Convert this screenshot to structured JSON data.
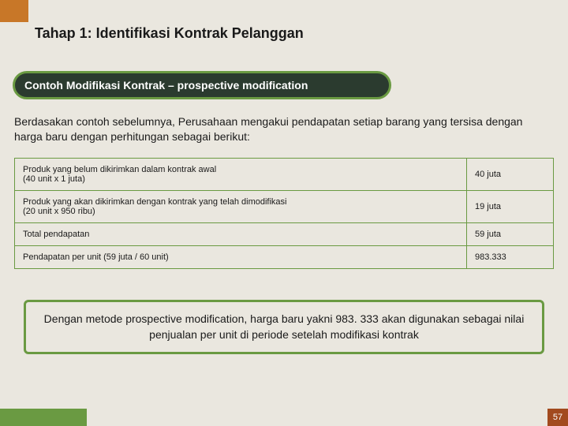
{
  "colors": {
    "background": "#eae7df",
    "accent_orange": "#c87728",
    "accent_dark_orange": "#a24a1e",
    "green": "#6a9a42",
    "dark_green": "#2b3b2f",
    "text": "#1a1a1a",
    "white": "#ffffff"
  },
  "title": "Tahap 1:  Identifikasi Kontrak Pelanggan",
  "subtitle": "Contoh Modifikasi Kontrak – prospective modification",
  "intro": "Berdasakan contoh sebelumnya, Perusahaan mengakui pendapatan setiap barang yang tersisa dengan harga baru dengan perhitungan sebagai berikut:",
  "table": {
    "type": "table",
    "border_color": "#6a9a42",
    "cell_bg": "#eae7df",
    "font_size": 11,
    "rows": [
      {
        "label": "Produk yang belum dikirimkan dalam kontrak awal\n(40 unit x 1 juta)",
        "value": "40 juta"
      },
      {
        "label": "Produk yang akan dikirimkan dengan kontrak yang telah dimodifikasi\n(20 unit x 950 ribu)",
        "value": "19 juta"
      },
      {
        "label": "Total pendapatan",
        "value": "59 juta"
      },
      {
        "label": "Pendapatan per unit (59 juta / 60 unit)",
        "value": "983.333"
      }
    ]
  },
  "conclusion": "Dengan metode prospective modification, harga baru yakni 983. 333 akan digunakan sebagai nilai penjualan per unit di periode setelah modifikasi kontrak",
  "page_number": "57"
}
